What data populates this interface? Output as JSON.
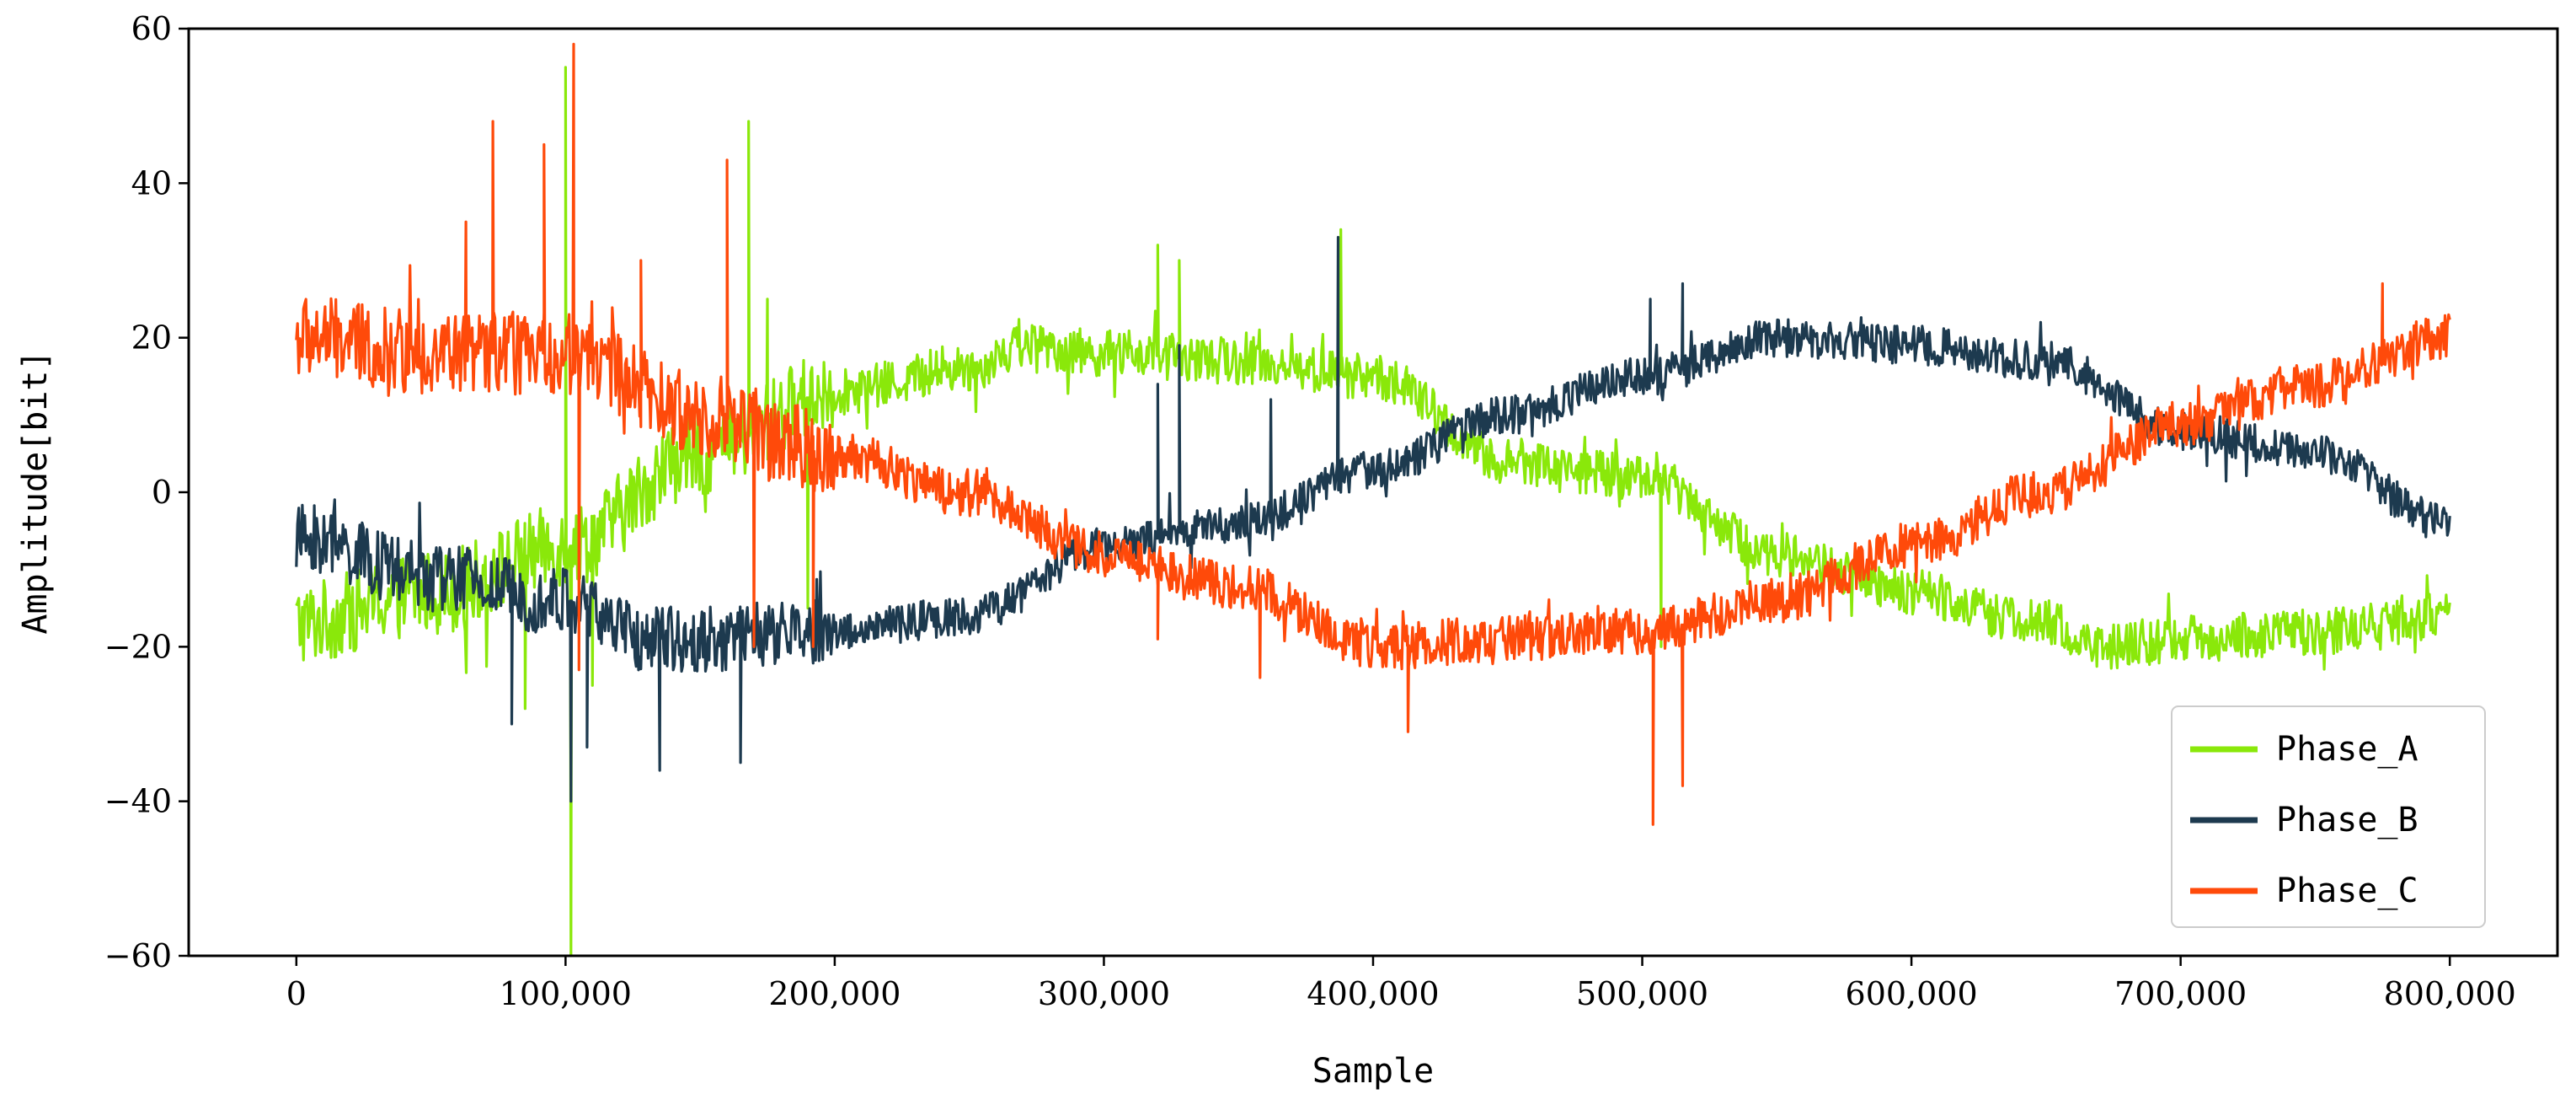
{
  "chart_data": {
    "type": "line",
    "xlabel": "Sample",
    "ylabel": "Amplitude[bit]",
    "xlim": [
      -40000,
      840000
    ],
    "ylim": [
      -60,
      60
    ],
    "xticks": [
      0,
      100000,
      200000,
      300000,
      400000,
      500000,
      600000,
      700000,
      800000
    ],
    "xtick_labels": [
      "0",
      "100,000",
      "200,000",
      "300,000",
      "400,000",
      "500,000",
      "600,000",
      "700,000",
      "800,000"
    ],
    "yticks": [
      -60,
      -40,
      -20,
      0,
      20,
      40,
      60
    ],
    "ytick_labels": [
      "−60",
      "−40",
      "−20",
      "0",
      "20",
      "40",
      "60"
    ],
    "grid": false,
    "legend_position": "bottom-right",
    "series": [
      {
        "name": "Phase_A",
        "color": "#8ae80a",
        "noise_amplitude": 3,
        "x": [
          0,
          50000,
          100000,
          150000,
          200000,
          250000,
          270000,
          300000,
          350000,
          400000,
          450000,
          500000,
          550000,
          600000,
          650000,
          670000,
          700000,
          750000,
          800000
        ],
        "y": [
          -17,
          -13,
          -7,
          5,
          13,
          16,
          19,
          18,
          17,
          15,
          4,
          2,
          -8,
          -13,
          -17,
          -20,
          -19,
          -18,
          -16
        ],
        "spikes": [
          {
            "x": 100000,
            "y": 55
          },
          {
            "x": 102000,
            "y": -60
          },
          {
            "x": 160000,
            "y": 33
          },
          {
            "x": 168000,
            "y": 48
          },
          {
            "x": 175000,
            "y": 25
          },
          {
            "x": 190000,
            "y": -15
          },
          {
            "x": 320000,
            "y": 32
          },
          {
            "x": 328000,
            "y": 30
          },
          {
            "x": 388000,
            "y": 34
          },
          {
            "x": 507000,
            "y": -20
          },
          {
            "x": 85000,
            "y": -28
          },
          {
            "x": 110000,
            "y": -25
          }
        ]
      },
      {
        "name": "Phase_B",
        "color": "#1d3a4f",
        "noise_amplitude": 2.5,
        "x": [
          0,
          50000,
          100000,
          130000,
          150000,
          200000,
          250000,
          300000,
          350000,
          400000,
          450000,
          500000,
          550000,
          600000,
          650000,
          700000,
          750000,
          800000
        ],
        "y": [
          -6,
          -11,
          -14,
          -19,
          -19,
          -18,
          -16,
          -7,
          -4,
          3,
          10,
          15,
          20,
          19,
          17,
          8,
          5,
          -4
        ],
        "spikes": [
          {
            "x": 102000,
            "y": -40
          },
          {
            "x": 108000,
            "y": -33
          },
          {
            "x": 80000,
            "y": -30
          },
          {
            "x": 165000,
            "y": -35
          },
          {
            "x": 135000,
            "y": -36
          },
          {
            "x": 320000,
            "y": 14
          },
          {
            "x": 328000,
            "y": 19
          },
          {
            "x": 362000,
            "y": 12
          },
          {
            "x": 387000,
            "y": 33
          },
          {
            "x": 503000,
            "y": 25
          },
          {
            "x": 515000,
            "y": 27
          },
          {
            "x": 700000,
            "y": 8
          }
        ]
      },
      {
        "name": "Phase_C",
        "color": "#ff4a0a",
        "noise_amplitude": 3,
        "x": [
          0,
          50000,
          100000,
          150000,
          200000,
          250000,
          300000,
          350000,
          400000,
          450000,
          500000,
          550000,
          600000,
          650000,
          700000,
          750000,
          800000
        ],
        "y": [
          20,
          18,
          18,
          10,
          5,
          0,
          -8,
          -12,
          -20,
          -19,
          -18,
          -14,
          -7,
          0,
          9,
          14,
          20
        ],
        "spikes": [
          {
            "x": 73000,
            "y": 48
          },
          {
            "x": 103000,
            "y": 58
          },
          {
            "x": 105000,
            "y": -23
          },
          {
            "x": 92000,
            "y": 45
          },
          {
            "x": 63000,
            "y": 35
          },
          {
            "x": 160000,
            "y": 43
          },
          {
            "x": 170000,
            "y": -20
          },
          {
            "x": 192000,
            "y": -20
          },
          {
            "x": 413000,
            "y": -31
          },
          {
            "x": 504000,
            "y": -43
          },
          {
            "x": 515000,
            "y": -38
          },
          {
            "x": 775000,
            "y": 27
          },
          {
            "x": 128000,
            "y": 30
          },
          {
            "x": 320000,
            "y": -19
          },
          {
            "x": 358000,
            "y": -24
          }
        ]
      }
    ]
  }
}
